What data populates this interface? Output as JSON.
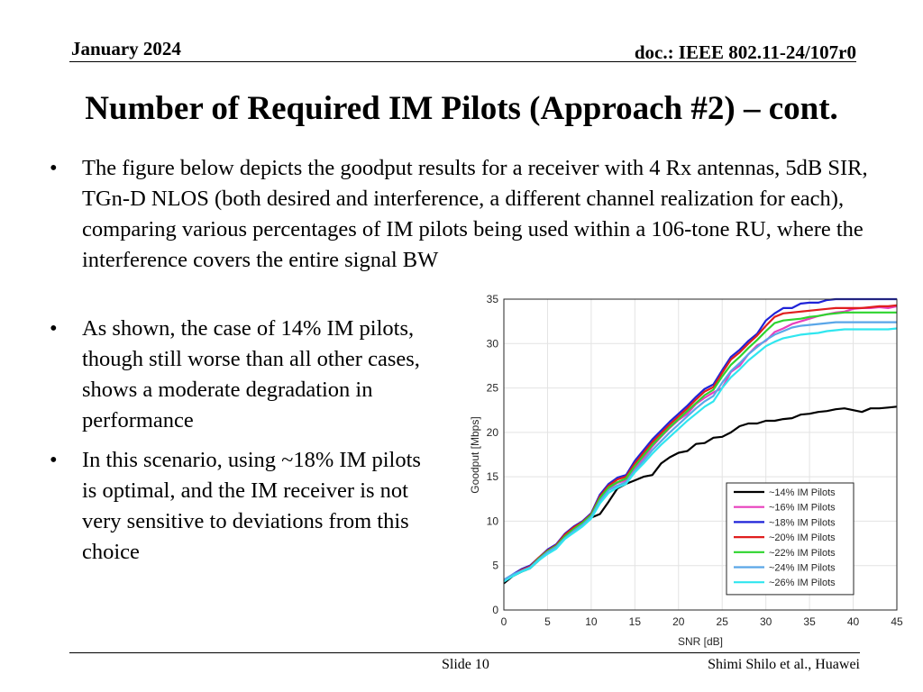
{
  "header": {
    "date": "January 2024",
    "doc": "doc.: IEEE 802.11-24/107r0"
  },
  "title": "Number of Required IM Pilots (Approach #2) – cont.",
  "bullets": [
    {
      "marker": "•",
      "text": "The figure below depicts the goodput results for a receiver with 4 Rx antennas, 5dB SIR, TGn-D NLOS (both desired and interference, a different channel realization for each), comparing various percentages of IM pilots being used within a 106-tone RU, where the interference covers the entire signal BW"
    },
    {
      "marker": "•",
      "text": "As shown, the case of 14% IM pilots, though still worse than all other cases, shows a moderate degradation in performance"
    },
    {
      "marker": "•",
      "text": "In this scenario, using ~18% IM pilots is optimal, and the IM receiver is not very sensitive to deviations from this choice"
    }
  ],
  "footer": {
    "slide": "Slide 10",
    "author": "Shimi Shilo et al., Huawei"
  },
  "chart_data": {
    "type": "line",
    "title": "",
    "xlabel": "SNR [dB]",
    "ylabel": "Goodput [Mbps]",
    "xlim": [
      0,
      45
    ],
    "ylim": [
      0,
      35
    ],
    "xticks": [
      0,
      5,
      10,
      15,
      20,
      25,
      30,
      35,
      40,
      45
    ],
    "yticks": [
      0,
      5,
      10,
      15,
      20,
      25,
      30,
      35
    ],
    "grid": true,
    "legend_position": "lower-right",
    "x": [
      0,
      1,
      2,
      3,
      4,
      5,
      6,
      7,
      8,
      9,
      10,
      11,
      12,
      13,
      14,
      15,
      16,
      17,
      18,
      19,
      20,
      21,
      22,
      23,
      24,
      25,
      26,
      27,
      28,
      29,
      30,
      31,
      32,
      33,
      34,
      35,
      36,
      37,
      38,
      39,
      40,
      41,
      42,
      43,
      44,
      45
    ],
    "series": [
      {
        "name": "~14% IM Pilots",
        "color": "#000000",
        "values": [
          3.0,
          3.8,
          4.3,
          4.7,
          5.6,
          6.4,
          7.0,
          8.2,
          8.9,
          9.5,
          10.4,
          10.8,
          12.2,
          13.7,
          14.2,
          14.6,
          15.0,
          15.2,
          16.5,
          17.2,
          17.7,
          17.9,
          18.7,
          18.8,
          19.4,
          19.5,
          20.0,
          20.7,
          21.0,
          21.0,
          21.3,
          21.3,
          21.5,
          21.6,
          22.0,
          22.1,
          22.3,
          22.4,
          22.6,
          22.7,
          22.5,
          22.3,
          22.7,
          22.7,
          22.8,
          22.9
        ]
      },
      {
        "name": "~16% IM Pilots",
        "color": "#e83fbd",
        "values": [
          3.3,
          3.9,
          4.4,
          4.8,
          5.8,
          6.6,
          7.2,
          8.3,
          9.0,
          9.6,
          10.6,
          12.6,
          13.7,
          14.3,
          14.6,
          16.0,
          17.1,
          18.4,
          19.5,
          20.5,
          21.4,
          22.1,
          23.2,
          23.9,
          24.5,
          25.0,
          26.8,
          27.5,
          28.8,
          29.8,
          30.3,
          31.3,
          31.7,
          32.2,
          32.5,
          32.8,
          33.1,
          33.3,
          33.5,
          33.6,
          33.9,
          34.0,
          34.0,
          34.1,
          34.0,
          34.2
        ]
      },
      {
        "name": "~18% IM Pilots",
        "color": "#1f23d8",
        "values": [
          3.2,
          4.0,
          4.6,
          5.0,
          5.9,
          6.8,
          7.4,
          8.6,
          9.4,
          10.0,
          10.9,
          13.0,
          14.2,
          14.9,
          15.2,
          16.8,
          18.0,
          19.2,
          20.2,
          21.2,
          22.1,
          23.0,
          24.0,
          24.9,
          25.4,
          27.0,
          28.5,
          29.3,
          30.3,
          31.1,
          32.6,
          33.4,
          34.0,
          34.0,
          34.5,
          34.6,
          34.6,
          34.9,
          35.0,
          35.0,
          35.0,
          35.0,
          35.0,
          35.0,
          35.0,
          35.0
        ]
      },
      {
        "name": "~20% IM Pilots",
        "color": "#e01e1e",
        "values": [
          3.2,
          3.9,
          4.5,
          4.9,
          5.9,
          6.7,
          7.3,
          8.5,
          9.3,
          9.9,
          10.8,
          12.8,
          14.0,
          14.7,
          15.0,
          16.5,
          17.7,
          18.9,
          19.9,
          20.9,
          21.8,
          22.7,
          23.7,
          24.6,
          25.1,
          26.7,
          28.2,
          29.0,
          30.0,
          30.9,
          32.0,
          33.0,
          33.4,
          33.5,
          33.6,
          33.7,
          33.8,
          33.9,
          34.0,
          34.0,
          34.0,
          34.0,
          34.1,
          34.2,
          34.2,
          34.3
        ]
      },
      {
        "name": "~22% IM Pilots",
        "color": "#2ed42e",
        "values": [
          3.3,
          3.9,
          4.4,
          4.8,
          5.8,
          6.6,
          7.2,
          8.3,
          9.1,
          9.8,
          10.7,
          12.6,
          13.8,
          14.4,
          14.8,
          16.2,
          17.4,
          18.6,
          19.6,
          20.6,
          21.5,
          22.4,
          23.3,
          24.2,
          24.8,
          26.3,
          27.6,
          28.5,
          29.5,
          30.4,
          31.4,
          32.3,
          32.6,
          32.7,
          32.8,
          33.0,
          33.1,
          33.3,
          33.4,
          33.5,
          33.5,
          33.5,
          33.5,
          33.5,
          33.5,
          33.5
        ]
      },
      {
        "name": "~24% IM Pilots",
        "color": "#5aa6e8",
        "values": [
          3.4,
          4.0,
          4.4,
          4.8,
          5.7,
          6.5,
          7.1,
          8.1,
          8.9,
          9.6,
          10.5,
          12.3,
          13.5,
          14.0,
          14.4,
          15.7,
          16.8,
          18.0,
          19.0,
          20.0,
          20.9,
          21.8,
          22.7,
          23.5,
          24.1,
          25.6,
          26.9,
          27.8,
          28.8,
          29.6,
          30.4,
          31.0,
          31.4,
          31.8,
          32.0,
          32.1,
          32.2,
          32.3,
          32.4,
          32.4,
          32.4,
          32.4,
          32.4,
          32.4,
          32.4,
          32.4
        ]
      },
      {
        "name": "~26% IM Pilots",
        "color": "#30e6ef",
        "values": [
          3.2,
          3.8,
          4.3,
          4.7,
          5.6,
          6.3,
          6.9,
          8.0,
          8.7,
          9.4,
          10.3,
          12.0,
          13.2,
          13.8,
          14.2,
          15.5,
          16.5,
          17.6,
          18.6,
          19.5,
          20.4,
          21.3,
          22.1,
          22.9,
          23.5,
          25.0,
          26.2,
          27.1,
          28.1,
          28.9,
          29.7,
          30.2,
          30.6,
          30.8,
          31.0,
          31.1,
          31.2,
          31.4,
          31.5,
          31.6,
          31.6,
          31.6,
          31.6,
          31.6,
          31.6,
          31.7
        ]
      }
    ]
  }
}
